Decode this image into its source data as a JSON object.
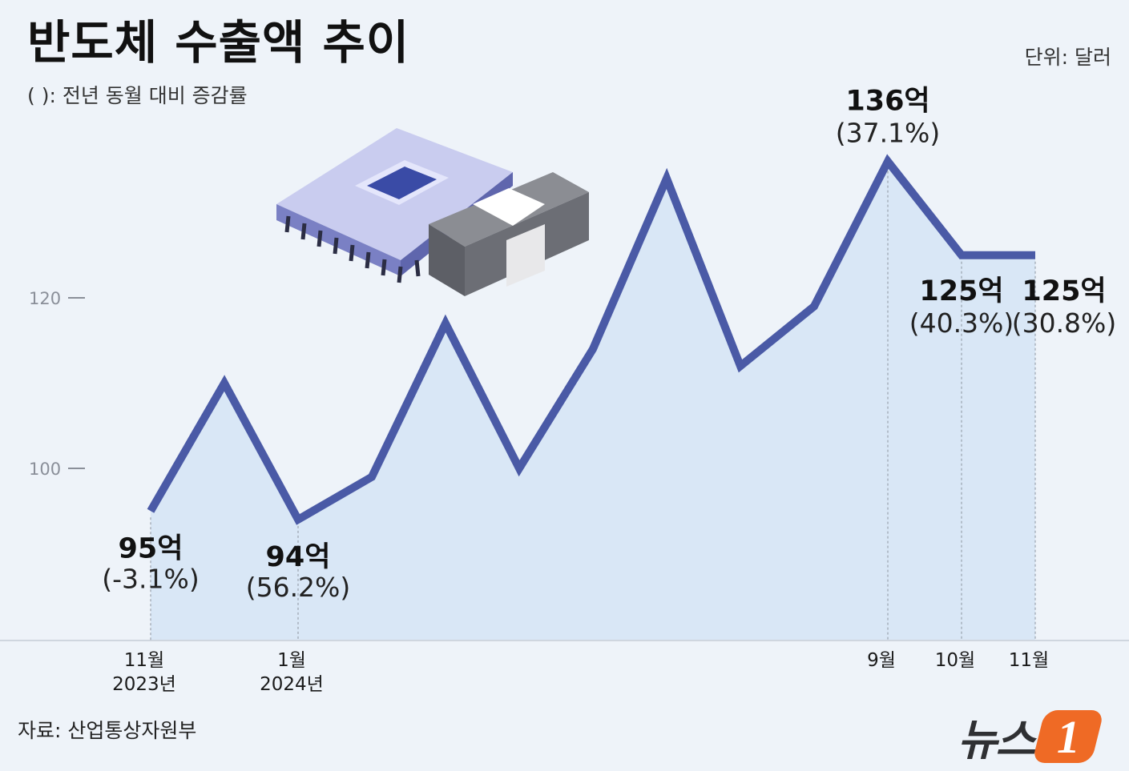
{
  "title": "반도체 수출액 추이",
  "subtitle": "(   ): 전년 동월 대비 증감률",
  "unit": "단위: 달러",
  "source": "자료: 산업통상자원부",
  "logo": {
    "text": "뉴스",
    "badge": "1",
    "badge_color": "#ef6a25"
  },
  "colors": {
    "line": "#4a5aa6",
    "area": "#d9e7f6",
    "background": "#eef3f9"
  },
  "chart_data": {
    "type": "area",
    "title": "반도체 수출액 추이",
    "xlabel": "",
    "ylabel": "",
    "unit": "억 달러",
    "ylim": [
      80,
      140
    ],
    "yticks": [
      100,
      120
    ],
    "grid": false,
    "x": [
      "2023-11",
      "2023-12",
      "2024-01",
      "2024-02",
      "2024-03",
      "2024-04",
      "2024-05",
      "2024-06",
      "2024-07",
      "2024-08",
      "2024-09",
      "2024-10",
      "2024-11"
    ],
    "values": [
      95,
      110,
      94,
      99,
      117,
      100,
      114,
      134,
      112,
      119,
      136,
      125,
      125
    ],
    "x_tick_labels": [
      {
        "index": 0,
        "lines": [
          "11월",
          "2023년"
        ]
      },
      {
        "index": 2,
        "lines": [
          "1월",
          "2024년"
        ]
      },
      {
        "index": 10,
        "lines": [
          "9월"
        ]
      },
      {
        "index": 11,
        "lines": [
          "10월"
        ]
      },
      {
        "index": 12,
        "lines": [
          "11월"
        ]
      }
    ],
    "annotations": [
      {
        "index": 0,
        "value": "95억",
        "change": "(-3.1%)",
        "position": "below"
      },
      {
        "index": 2,
        "value": "94억",
        "change": "(56.2%)",
        "position": "below"
      },
      {
        "index": 10,
        "value": "136억",
        "change": "(37.1%)",
        "position": "above"
      },
      {
        "index": 11,
        "value": "125억",
        "change": "(40.3%)",
        "position": "below"
      },
      {
        "index": 12,
        "value": "125억",
        "change": "(30.8%)",
        "position": "below"
      }
    ]
  }
}
